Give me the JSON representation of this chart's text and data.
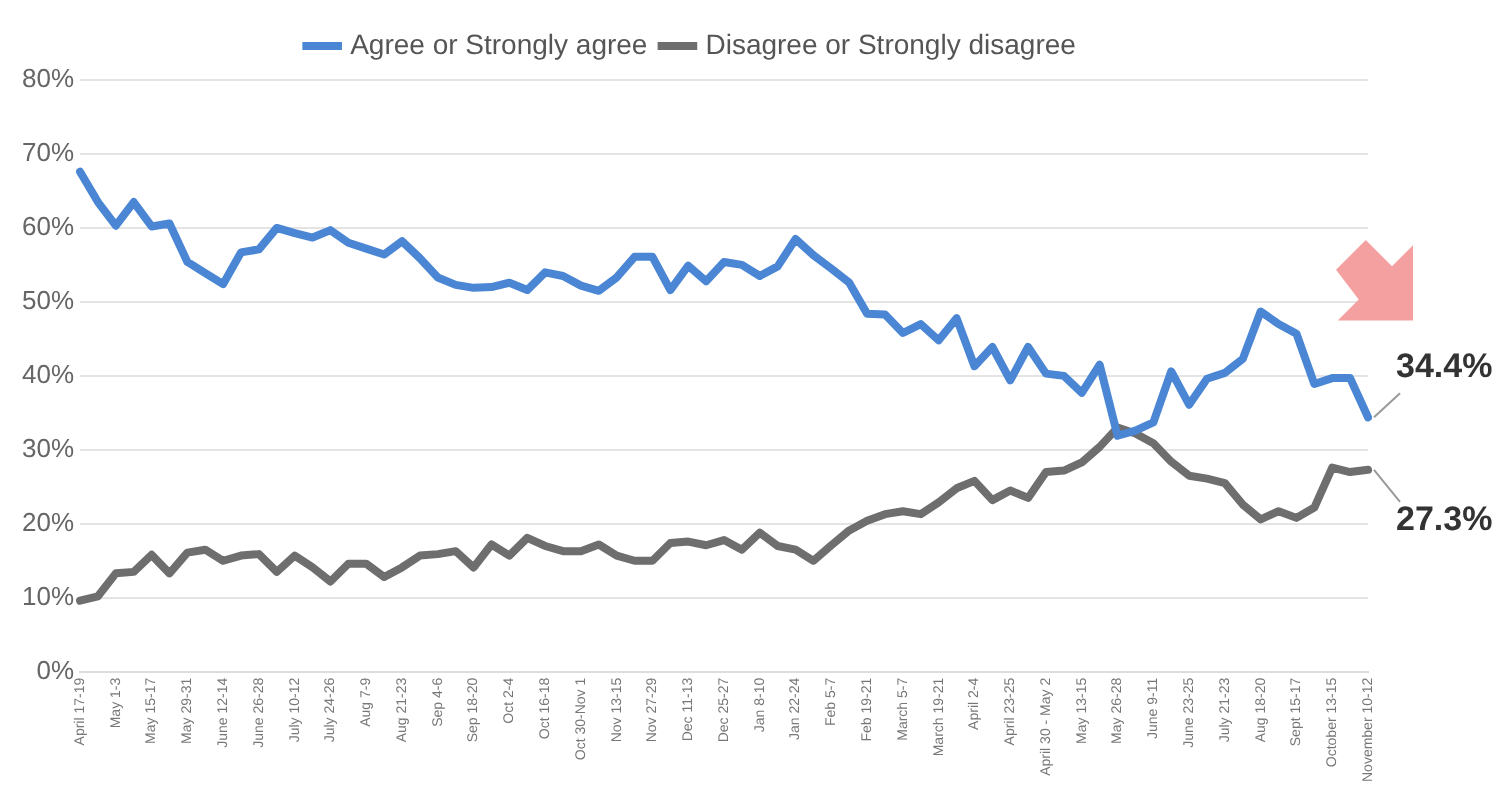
{
  "chart_data": {
    "type": "line",
    "categories": [
      "April 17-19",
      null,
      "May 1-3",
      null,
      "May 15-17",
      null,
      "May 29-31",
      null,
      "June 12-14",
      null,
      "June 26-28",
      null,
      "July 10-12",
      null,
      "July 24-26",
      null,
      "Aug 7-9",
      null,
      "Aug 21-23",
      null,
      "Sep 4-6",
      null,
      "Sep 18-20",
      null,
      "Oct 2-4",
      null,
      "Oct 16-18",
      null,
      "Oct 30-Nov 1",
      null,
      "Nov 13-15",
      null,
      "Nov 27-29",
      null,
      "Dec 11-13",
      null,
      "Dec 25-27",
      null,
      "Jan 8-10",
      null,
      "Jan 22-24",
      null,
      "Feb 5-7",
      null,
      "Feb 19-21",
      null,
      "March 5-7",
      null,
      "March 19-21",
      null,
      "April 2-4",
      null,
      "April 23-25",
      null,
      "April 30 - May 2",
      null,
      "May 13-15",
      null,
      "May 26-28",
      null,
      "June 9-11",
      null,
      "June 23-25",
      null,
      "July 21-23",
      null,
      "Aug 18-20",
      null,
      "Sept 15-17",
      null,
      "October 13-15",
      null,
      "November 10-12"
    ],
    "series": [
      {
        "name": "Agree or Strongly agree",
        "color": "#4a86d4",
        "values": [
          67.6,
          63.5,
          60.3,
          63.5,
          60.2,
          60.6,
          55.4,
          53.9,
          52.4,
          56.7,
          57.1,
          60.0,
          59.3,
          58.7,
          59.7,
          58.0,
          57.2,
          56.4,
          58.2,
          55.9,
          53.3,
          52.3,
          51.9,
          52.0,
          52.6,
          51.6,
          54.0,
          53.5,
          52.2,
          51.5,
          53.3,
          56.1,
          56.1,
          51.6,
          54.9,
          52.8,
          55.4,
          55.0,
          53.5,
          54.8,
          58.5,
          56.3,
          54.5,
          52.6,
          48.4,
          48.3,
          45.8,
          47.0,
          44.8,
          47.8,
          41.3,
          43.9,
          39.4,
          43.9,
          40.3,
          40.0,
          37.7,
          41.5,
          31.9,
          32.6,
          33.7,
          40.6,
          36.1,
          39.6,
          40.4,
          42.3,
          48.7,
          47.0,
          45.7,
          38.9,
          39.7,
          39.7,
          34.4
        ]
      },
      {
        "name": "Disagree or Strongly disagree",
        "color": "#6e6e6e",
        "values": [
          9.6,
          10.2,
          13.3,
          13.5,
          15.8,
          13.3,
          16.1,
          16.5,
          15.0,
          15.7,
          15.9,
          13.5,
          15.7,
          14.1,
          12.2,
          14.6,
          14.6,
          12.8,
          14.1,
          15.7,
          15.9,
          16.3,
          14.1,
          17.2,
          15.7,
          18.1,
          17.0,
          16.3,
          16.3,
          17.2,
          15.7,
          15.0,
          15.0,
          17.4,
          17.6,
          17.1,
          17.8,
          16.5,
          18.8,
          17.0,
          16.5,
          15.0,
          17.1,
          19.1,
          20.4,
          21.3,
          21.7,
          21.3,
          22.9,
          24.8,
          25.8,
          23.2,
          24.5,
          23.5,
          27.0,
          27.2,
          28.3,
          30.4,
          33.0,
          32.2,
          30.9,
          28.4,
          26.5,
          26.1,
          25.5,
          22.6,
          20.6,
          21.7,
          20.8,
          22.2,
          27.6,
          27.0,
          27.3
        ]
      }
    ],
    "ylim": [
      0,
      80
    ],
    "yticks": [
      {
        "value": 0,
        "label": "0%"
      },
      {
        "value": 10,
        "label": "10%"
      },
      {
        "value": 20,
        "label": "20%"
      },
      {
        "value": 30,
        "label": "30%"
      },
      {
        "value": 40,
        "label": "40%"
      },
      {
        "value": 50,
        "label": "50%"
      },
      {
        "value": 60,
        "label": "60%"
      },
      {
        "value": 70,
        "label": "70%"
      },
      {
        "value": 80,
        "label": "80%"
      }
    ],
    "grid": "y",
    "legend": "top",
    "marker": "none",
    "line_style": "solid",
    "annotations": [
      {
        "text": "34.4%",
        "x": "November 10-12",
        "y": 34.4
      },
      {
        "text": "27.3%",
        "x": "November 10-12",
        "y": 27.3
      }
    ]
  }
}
